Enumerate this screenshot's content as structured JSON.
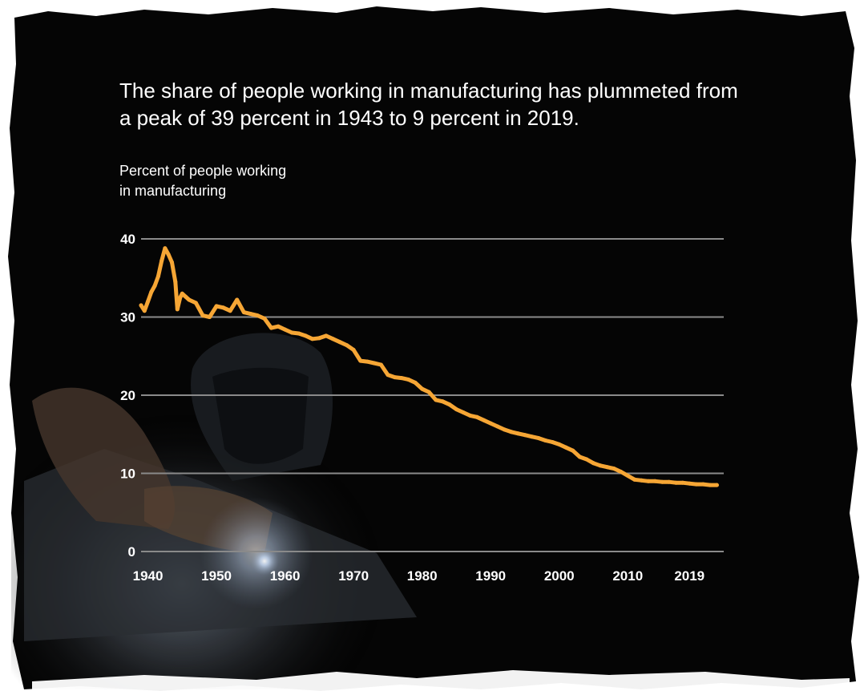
{
  "title_lines": [
    "The share of people working in manufacturing has plummeted from",
    "a peak of 39 percent in 1943 to 9 percent in 2019."
  ],
  "ylabel_lines": [
    "Percent of people working",
    "in manufacturing"
  ],
  "colors": {
    "background": "#050505",
    "line": "#f6a635",
    "grid": "#8a8a8a",
    "text": "#ffffff"
  },
  "chart_data": {
    "type": "line",
    "title": "The share of people working in manufacturing has plummeted from a peak of 39 percent in 1943 to 9 percent in 2019.",
    "ylabel": "Percent of people working in manufacturing",
    "xlabel": "",
    "x_ticks": [
      "1940",
      "1950",
      "1960",
      "1970",
      "1980",
      "1990",
      "2000",
      "2010",
      "2019"
    ],
    "y_ticks": [
      "0",
      "10",
      "20",
      "30",
      "40"
    ],
    "xlim": [
      1939,
      2024
    ],
    "ylim": [
      0,
      40
    ],
    "grid": true,
    "series": [
      {
        "name": "",
        "x": [
          1939,
          1939.5,
          1940,
          1940.5,
          1941,
          1941.5,
          1942,
          1942.5,
          1943,
          1943.5,
          1944,
          1944.3,
          1944.7,
          1945,
          1945.5,
          1946,
          1947,
          1948,
          1949,
          1950,
          1951,
          1952,
          1953,
          1954,
          1955,
          1956,
          1957,
          1958,
          1959,
          1960,
          1961,
          1962,
          1963,
          1964,
          1965,
          1966,
          1967,
          1968,
          1969,
          1970,
          1971,
          1972,
          1973,
          1974,
          1975,
          1976,
          1977,
          1978,
          1979,
          1980,
          1981,
          1982,
          1983,
          1984,
          1985,
          1986,
          1987,
          1988,
          1989,
          1990,
          1991,
          1992,
          1993,
          1994,
          1995,
          1996,
          1997,
          1998,
          1999,
          2000,
          2001,
          2002,
          2003,
          2004,
          2005,
          2006,
          2007,
          2008,
          2009,
          2010,
          2011,
          2012,
          2013,
          2014,
          2015,
          2016,
          2017,
          2018,
          2019,
          2020,
          2021,
          2022,
          2023
        ],
        "values": [
          31.5,
          30.8,
          32.0,
          33.2,
          34.0,
          35.2,
          37.2,
          38.8,
          38.0,
          37.0,
          34.5,
          31.0,
          32.5,
          33.0,
          32.6,
          32.2,
          31.8,
          30.2,
          30.0,
          31.4,
          31.2,
          30.8,
          32.2,
          30.6,
          30.4,
          30.2,
          29.8,
          28.6,
          28.8,
          28.4,
          28.0,
          27.9,
          27.6,
          27.2,
          27.3,
          27.6,
          27.2,
          26.8,
          26.4,
          25.8,
          24.4,
          24.3,
          24.1,
          23.9,
          22.6,
          22.3,
          22.2,
          22.0,
          21.6,
          20.8,
          20.4,
          19.4,
          19.2,
          18.8,
          18.2,
          17.8,
          17.4,
          17.2,
          16.8,
          16.4,
          16.0,
          15.6,
          15.3,
          15.1,
          14.9,
          14.7,
          14.5,
          14.2,
          14.0,
          13.7,
          13.3,
          12.9,
          12.1,
          11.8,
          11.3,
          11.0,
          10.8,
          10.6,
          10.2,
          9.7,
          9.2,
          9.1,
          9.0,
          9.0,
          8.9,
          8.9,
          8.8,
          8.8,
          8.7,
          8.6,
          8.6,
          8.5,
          8.5
        ]
      }
    ]
  }
}
